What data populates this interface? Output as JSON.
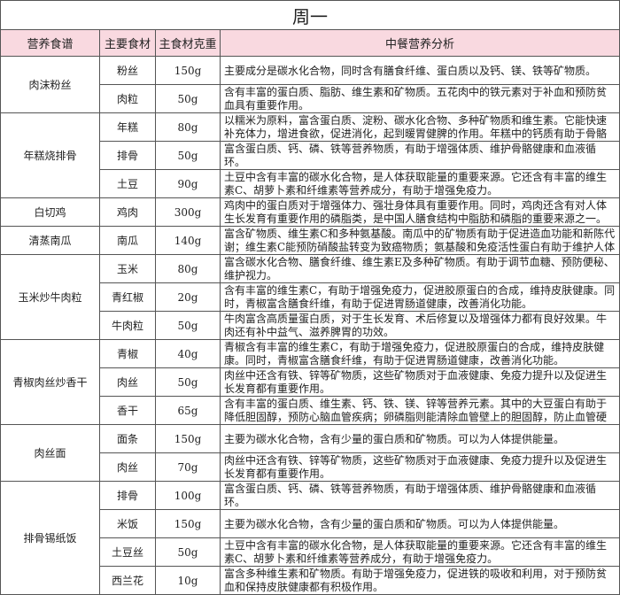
{
  "title": "周一",
  "headers": [
    "营养食谱",
    "主要食材",
    "主食材克重",
    "中餐营养分析"
  ],
  "dishes": [
    {
      "name": "肉沫粉丝",
      "items": [
        {
          "ingredient": "粉丝",
          "weight": "150g",
          "analysis": "主要成分是碳水化合物，同时含有膳食纤维、蛋白质以及钙、镁、铁等矿物质。"
        },
        {
          "ingredient": "肉粒",
          "weight": "50g",
          "analysis": "含有丰富的蛋白质、脂肪、维生素和矿物质。五花肉中的铁元素对于补血和预防贫血具有重要作用。"
        }
      ]
    },
    {
      "name": "年糕烧排骨",
      "items": [
        {
          "ingredient": "年糕",
          "weight": "80g",
          "analysis": "以糯米为原料，富含蛋白质、淀粉、碳水化合物、多种矿物质和维生素。它能快速补充体力，增进食欲，促进消化，起到暖胃健脾的作用。年糕中的钙质有助于骨骼生长，而"
        },
        {
          "ingredient": "排骨",
          "weight": "50g",
          "analysis": "富含蛋白质、钙、磷、铁等营养物质，有助于增强体质、维护骨骼健康和血液循环。"
        },
        {
          "ingredient": "土豆",
          "weight": "90g",
          "analysis": "土豆中含有丰富的碳水化合物，是人体获取能量的重要来源。它还含有丰富的维生素C、胡萝卜素和纤维素等营养成分，有助于增强免疫力。"
        }
      ]
    },
    {
      "name": "白切鸡",
      "items": [
        {
          "ingredient": "鸡肉",
          "weight": "300g",
          "analysis": "鸡肉中的蛋白质对于增强体力、强壮身体具有重要作用。同时，鸡肉还含有对人体生长发育有重要作用的磷脂类，是中国人膳食结构中脂肪和磷脂的重要来源之一。"
        }
      ]
    },
    {
      "name": "清蒸南瓜",
      "items": [
        {
          "ingredient": "南瓜",
          "weight": "140g",
          "analysis": "富含矿物质、维生素C和多种氨基酸。南瓜中的矿物质有助于促进造血功能和新陈代谢；维生素C能预防硝酸盐转变为致癌物质；氨基酸和免疫活性蛋白有助于维护人体健康。"
        }
      ]
    },
    {
      "name": "玉米炒牛肉粒",
      "items": [
        {
          "ingredient": "玉米",
          "weight": "80g",
          "analysis": "富含碳水化合物、膳食纤维、维生素E及多种矿物质。有助于调节血糖、预防便秘、维护视力。"
        },
        {
          "ingredient": "青红椒",
          "weight": "20g",
          "analysis": "含有丰富的维生素C，有助于增强免疫力，促进胶原蛋白的合成，维持皮肤健康。同时，青椒富含膳食纤维，有助于促进胃肠道健康，改善消化功能。"
        },
        {
          "ingredient": "牛肉粒",
          "weight": "50g",
          "analysis": "牛肉富含高质量蛋白质，对于生长发育、术后修复以及增强体力都有良好效果。牛肉还有补中益气、滋养脾胃的功效。"
        }
      ]
    },
    {
      "name": "青椒肉丝炒香干",
      "items": [
        {
          "ingredient": "青椒",
          "weight": "40g",
          "analysis": "青椒含有丰富的维生素C，有助于增强免疫力，促进胶原蛋白的合成，维持皮肤健康。同时，青椒富含膳食纤维，有助于促进胃肠道健康，改善消化功能。"
        },
        {
          "ingredient": "肉丝",
          "weight": "50g",
          "analysis": "肉丝中还含有铁、锌等矿物质，这些矿物质对于血液健康、免疫力提升以及促进生长发育都有重要作用。"
        },
        {
          "ingredient": "香干",
          "weight": "65g",
          "analysis": "含有丰富的蛋白质、维生素、钙、铁、镁、锌等营养元素。其中的大豆蛋白有助于降低胆固醇，预防心脑血管疾病；卵磷脂则能清除血管壁上的胆固醇，防止血管硬化。香干还能补充"
        }
      ]
    },
    {
      "name": "肉丝面",
      "items": [
        {
          "ingredient": "面条",
          "weight": "150g",
          "analysis": "主要为碳水化合物，含有少量的蛋白质和矿物质。可以为人体提供能量。"
        },
        {
          "ingredient": "肉丝",
          "weight": "70g",
          "analysis": "肉丝中还含有铁、锌等矿物质，这些矿物质对于血液健康、免疫力提升以及促进生长发育都有重要作用。"
        }
      ]
    },
    {
      "name": "排骨锡纸饭",
      "items": [
        {
          "ingredient": "排骨",
          "weight": "100g",
          "analysis": "富含蛋白质、钙、磷、铁等营养物质，有助于增强体质、维护骨骼健康和血液循环。"
        },
        {
          "ingredient": "米饭",
          "weight": "150g",
          "analysis": "主要为碳水化合物，含有少量的蛋白质和矿物质。可以为人体提供能量。"
        },
        {
          "ingredient": "土豆丝",
          "weight": "50g",
          "analysis": "土豆中含有丰富的碳水化合物，是人体获取能量的重要来源。它还含有丰富的维生素C、胡萝卜素和纤维素等营养成分，有助于增强免疫力。"
        },
        {
          "ingredient": "西兰花",
          "weight": "10g",
          "analysis": "富含多种维生素和矿物质。有助于增强免疫力，促进铁的吸收和利用，对于预防贫血和保持皮肤健康都有积极作用。"
        }
      ]
    }
  ],
  "colors": {
    "header_bg": "#f9d9e0",
    "border": "#555555"
  }
}
